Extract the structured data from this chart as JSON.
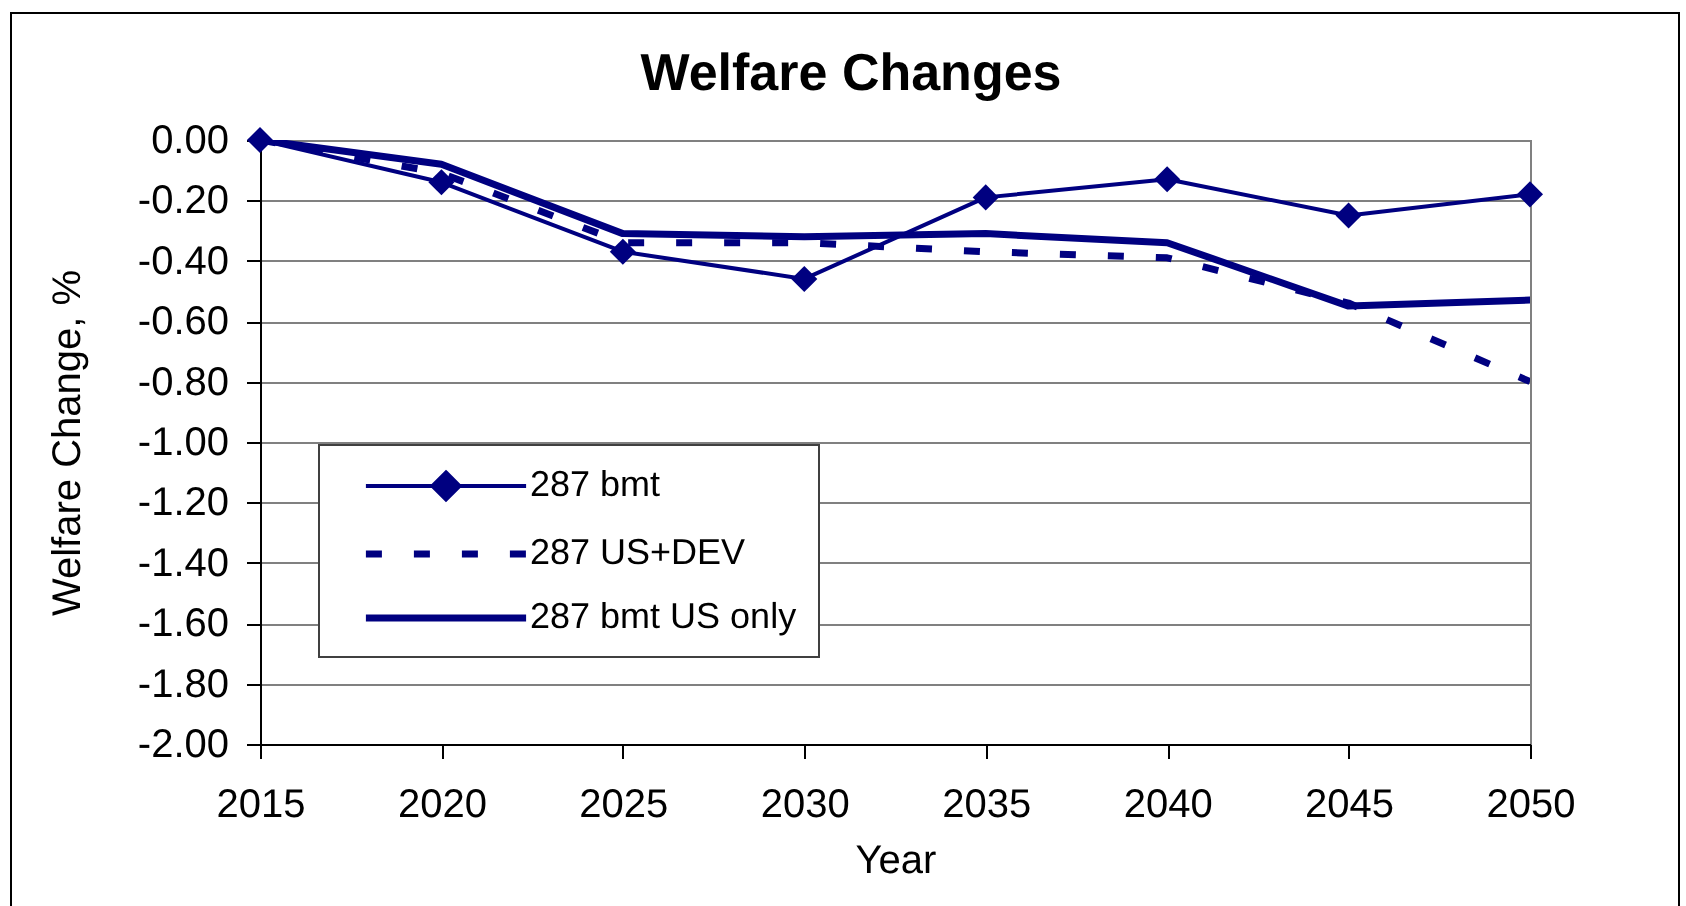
{
  "chart_data": {
    "type": "line",
    "title": "Welfare Changes",
    "xlabel": "Year",
    "ylabel": "Welfare Change, %",
    "x": [
      2015,
      2020,
      2025,
      2030,
      2035,
      2040,
      2045,
      2050
    ],
    "xlim": [
      2015,
      2050
    ],
    "xticks": [
      2015,
      2020,
      2025,
      2030,
      2035,
      2040,
      2045,
      2050
    ],
    "ylim": [
      -2,
      0
    ],
    "yticks": [
      {
        "value": 0,
        "label": "0.00"
      },
      {
        "value": -0.2,
        "label": "-0.20"
      },
      {
        "value": -0.4,
        "label": "-0.40"
      },
      {
        "value": -0.6,
        "label": "-0.60"
      },
      {
        "value": -0.8,
        "label": "-0.80"
      },
      {
        "value": -1,
        "label": "-1.00"
      },
      {
        "value": -1.2,
        "label": "-1.20"
      },
      {
        "value": -1.4,
        "label": "-1.40"
      },
      {
        "value": -1.6,
        "label": "-1.60"
      },
      {
        "value": -1.8,
        "label": "-1.80"
      },
      {
        "value": -2,
        "label": "-2.00"
      }
    ],
    "grid": "y",
    "legend": "bottom left",
    "series": [
      {
        "name": "287 bmt",
        "color": "#000080",
        "marker": "diamond",
        "line_style": "solid",
        "values": [
          0,
          -0.14,
          -0.37,
          -0.46,
          -0.19,
          -0.13,
          -0.25,
          -0.18
        ]
      },
      {
        "name": "287 US+DEV",
        "color": "#000080",
        "marker": "none",
        "line_style": "dashed",
        "values": [
          0,
          -0.11,
          -0.34,
          -0.34,
          -0.37,
          -0.39,
          -0.54,
          -0.8
        ]
      },
      {
        "name": "287 bmt US only",
        "color": "#000080",
        "marker": "none",
        "line_style": "solid",
        "values": [
          0,
          -0.08,
          -0.31,
          -0.32,
          -0.31,
          -0.34,
          -0.55,
          -0.53
        ]
      }
    ]
  }
}
